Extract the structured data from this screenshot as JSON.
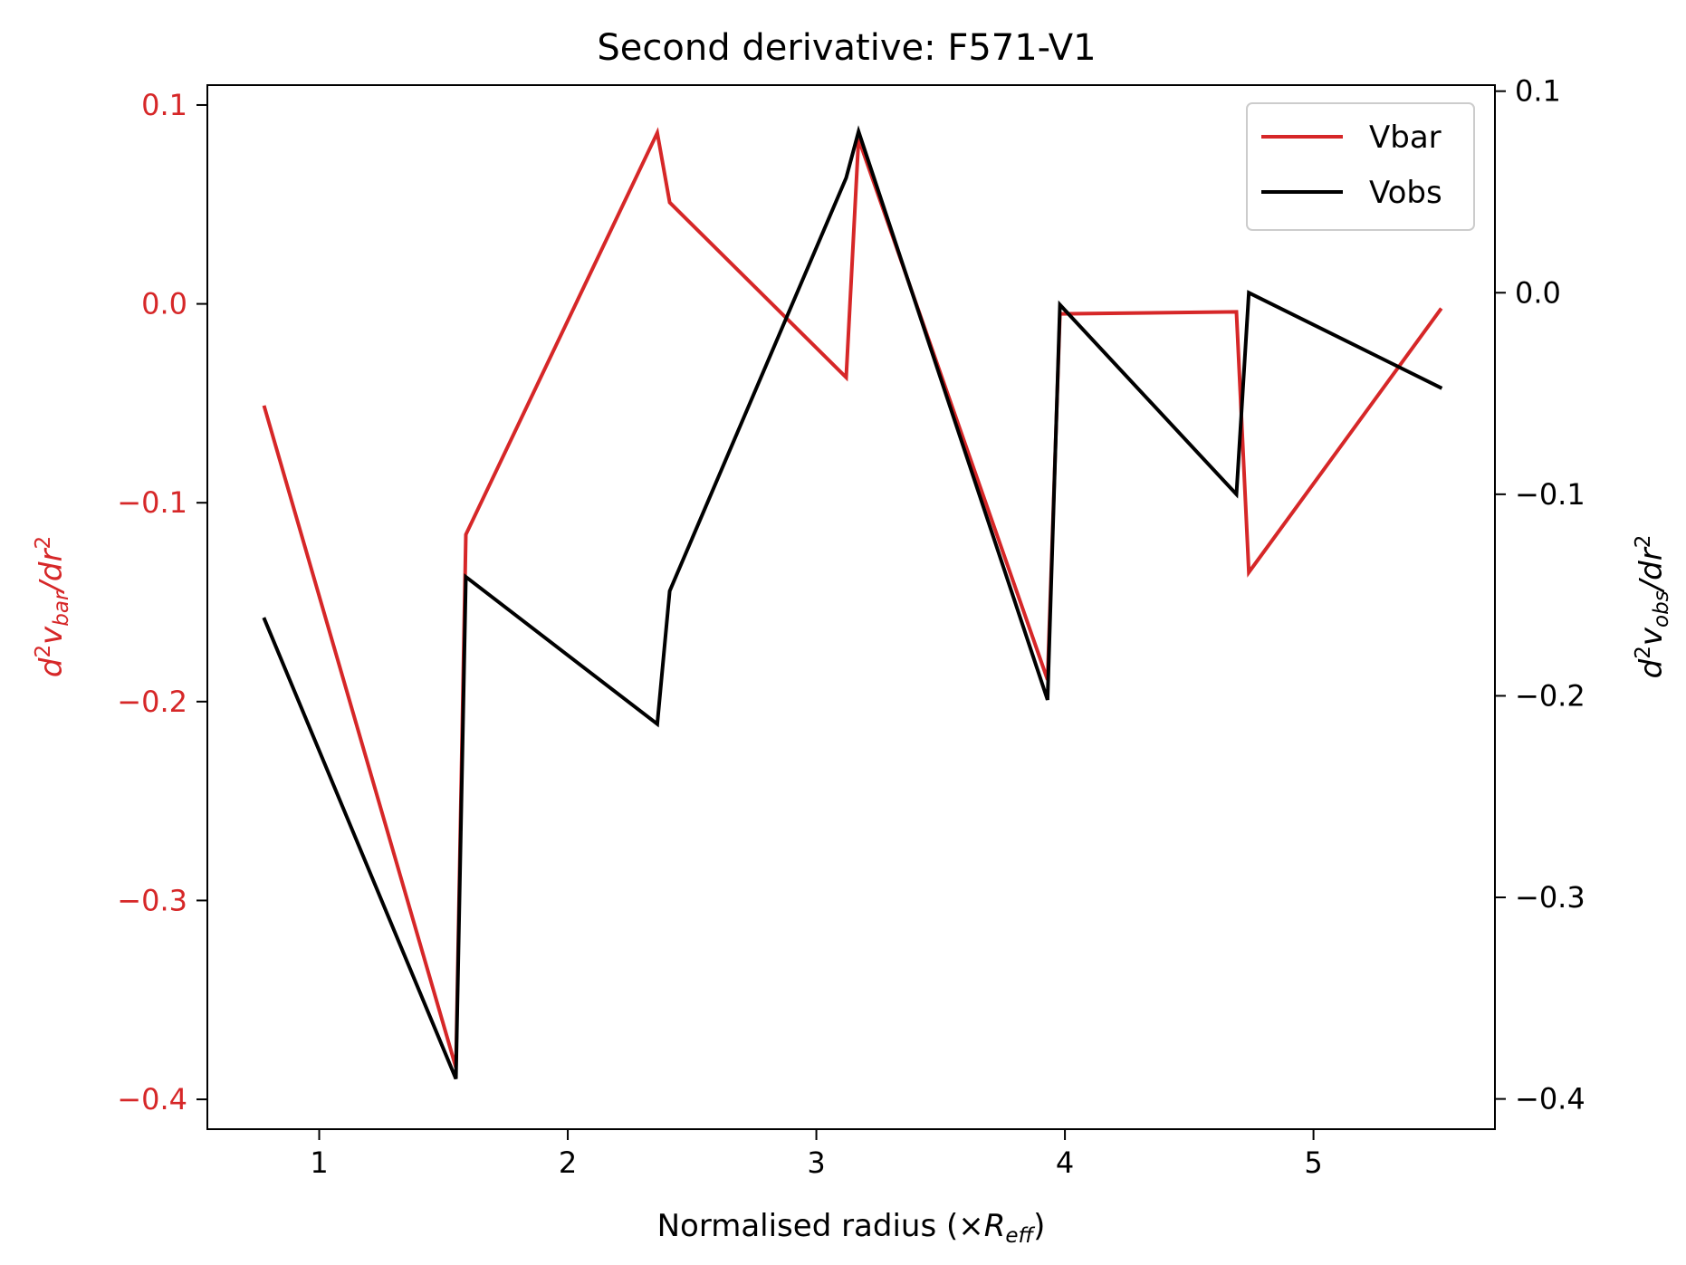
{
  "chart_data": {
    "type": "line",
    "title": "Second derivative: F571-V1",
    "xlabel": {
      "main": "Normalised radius (×",
      "italic": "R",
      "sub": "eff",
      "close": ")"
    },
    "ylabel_left": {
      "d": "d",
      "sup": "2",
      "v": "v",
      "sub": "bar",
      "slash": "/",
      "dr": "dr",
      "sup2": "2"
    },
    "ylabel_right": {
      "d": "d",
      "sup": "2",
      "v": "v",
      "sub": "obs",
      "slash": "/",
      "dr": "dr",
      "sup2": "2"
    },
    "xlim": [
      0.55,
      5.73
    ],
    "ylim_left": [
      -0.415,
      0.11
    ],
    "ylim_right": [
      -0.415,
      0.103
    ],
    "x_ticks": [
      1,
      2,
      3,
      4,
      5
    ],
    "x_tick_labels": [
      "1",
      "2",
      "3",
      "4",
      "5"
    ],
    "y_left_ticks": [
      0.1,
      0.0,
      -0.1,
      -0.2,
      -0.3,
      -0.4
    ],
    "y_left_tick_labels": [
      "0.1",
      "0.0",
      "−0.1",
      "−0.2",
      "−0.3",
      "−0.4"
    ],
    "y_right_ticks": [
      0.1,
      0.0,
      -0.1,
      -0.2,
      -0.3,
      -0.4
    ],
    "y_right_tick_labels": [
      "0.1",
      "0.0",
      "−0.1",
      "−0.2",
      "−0.3",
      "−0.4"
    ],
    "grid": false,
    "legend_position": "top-right",
    "series": [
      {
        "name": "Vbar",
        "color": "#d62728",
        "axis": "left",
        "x": [
          0.78,
          1.55,
          1.59,
          2.36,
          2.41,
          3.12,
          3.17,
          3.93,
          3.98,
          4.69,
          4.74,
          5.51
        ],
        "y": [
          -0.052,
          -0.384,
          -0.116,
          0.086,
          0.051,
          -0.037,
          0.083,
          -0.189,
          -0.005,
          -0.004,
          -0.135,
          -0.003
        ]
      },
      {
        "name": "Vobs",
        "color": "#000000",
        "axis": "right",
        "x": [
          0.78,
          1.55,
          1.59,
          2.36,
          2.41,
          3.12,
          3.17,
          3.93,
          3.98,
          4.69,
          4.74,
          5.51
        ],
        "y": [
          -0.162,
          -0.39,
          -0.141,
          -0.214,
          -0.148,
          0.057,
          0.08,
          -0.202,
          -0.006,
          -0.1,
          0.0,
          -0.047
        ]
      }
    ]
  }
}
